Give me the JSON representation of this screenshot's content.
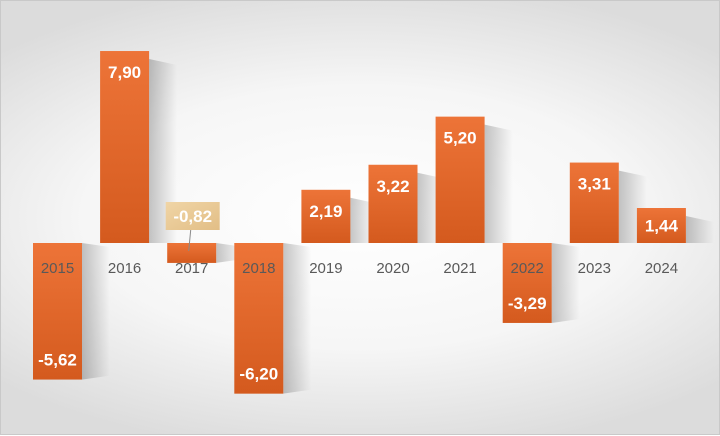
{
  "chart_data": {
    "type": "bar",
    "title": "",
    "xlabel": "",
    "ylabel": "",
    "categories": [
      "2015",
      "2016",
      "2017",
      "2018",
      "2019",
      "2020",
      "2021",
      "2022",
      "2023",
      "2024"
    ],
    "values": [
      -5.62,
      7.9,
      -0.82,
      -6.2,
      2.19,
      3.22,
      5.2,
      -3.29,
      3.31,
      1.44
    ],
    "data_labels": [
      "-5,62",
      "7,90",
      "-0,82",
      "-6,20",
      "2,19",
      "3,22",
      "5,20",
      "-3,29",
      "3,31",
      "1,44"
    ],
    "ylim": [
      -6.2,
      7.9
    ],
    "grid": false,
    "legend": "none",
    "colors": {
      "bar_top": "#ED7438",
      "bar_bottom": "#D45A1E",
      "callout_fill": "#EBCB9A",
      "tick_text": "#595959"
    }
  }
}
